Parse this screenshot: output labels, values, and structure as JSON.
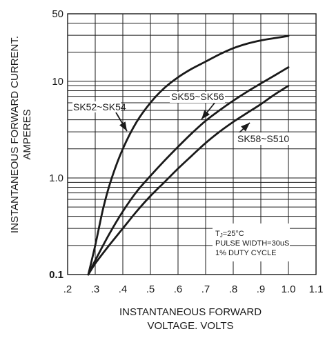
{
  "chart_data": {
    "type": "line",
    "xlabel_line1": "INSTANTANEOUS FORWARD",
    "xlabel_line2": "VOLTAGE. VOLTS",
    "ylabel_line1": "INSTANTANEOUS FORWARD CURRENT.",
    "ylabel_line2": "AMPERES",
    "x_scale": "linear",
    "y_scale": "log",
    "xlim": [
      0.2,
      1.1
    ],
    "ylim": [
      0.1,
      50
    ],
    "x_ticks": [
      {
        "value": 0.2,
        "label": ".2"
      },
      {
        "value": 0.3,
        "label": ".3"
      },
      {
        "value": 0.4,
        "label": ".4"
      },
      {
        "value": 0.5,
        "label": ".5"
      },
      {
        "value": 0.6,
        "label": ".6"
      },
      {
        "value": 0.7,
        "label": ".7"
      },
      {
        "value": 0.8,
        "label": ".8"
      },
      {
        "value": 0.9,
        "label": ".9"
      },
      {
        "value": 1.0,
        "label": "1.0"
      },
      {
        "value": 1.1,
        "label": "1.1"
      }
    ],
    "y_ticks": [
      {
        "value": 0.1,
        "label": "0.1",
        "bold": true
      },
      {
        "value": 1.0,
        "label": "1.0",
        "bold": false
      },
      {
        "value": 10,
        "label": "10",
        "bold": false
      },
      {
        "value": 50,
        "label": "50",
        "bold": false
      }
    ],
    "grid": true,
    "series": [
      {
        "name": "SK52~SK54",
        "x": [
          0.275,
          0.3,
          0.33,
          0.36,
          0.4,
          0.45,
          0.5,
          0.55,
          0.6,
          0.65,
          0.7,
          0.75,
          0.8,
          0.85,
          0.9,
          0.95,
          1.0
        ],
        "y": [
          0.1,
          0.2,
          0.5,
          1.0,
          2.0,
          3.8,
          6.0,
          8.5,
          11,
          13.5,
          16,
          19,
          22,
          24.5,
          26.5,
          28,
          29.5
        ]
      },
      {
        "name": "SK55~SK56",
        "x": [
          0.275,
          0.3,
          0.35,
          0.4,
          0.45,
          0.5,
          0.55,
          0.6,
          0.65,
          0.7,
          0.75,
          0.8,
          0.85,
          0.9,
          0.95,
          1.0
        ],
        "y": [
          0.1,
          0.14,
          0.26,
          0.45,
          0.72,
          1.05,
          1.5,
          2.1,
          2.9,
          3.9,
          5.0,
          6.3,
          7.8,
          9.5,
          11.5,
          14
        ]
      },
      {
        "name": "SK58~S510",
        "x": [
          0.275,
          0.3,
          0.35,
          0.4,
          0.45,
          0.5,
          0.55,
          0.6,
          0.65,
          0.7,
          0.75,
          0.8,
          0.85,
          0.9,
          0.95,
          1.0
        ],
        "y": [
          0.1,
          0.13,
          0.2,
          0.3,
          0.45,
          0.65,
          0.9,
          1.25,
          1.7,
          2.3,
          3.0,
          3.8,
          4.7,
          5.8,
          7.3,
          9.0
        ]
      }
    ],
    "curve_labels": [
      {
        "text": "SK52~SK54",
        "series": 0
      },
      {
        "text": "SK55~SK56",
        "series": 1
      },
      {
        "text": "SK58~S510",
        "series": 2
      }
    ],
    "conditions": {
      "line1_prefix": "T",
      "line1_sub": "J",
      "line1_suffix": "=25°C",
      "line2": "PULSE WIDTH=30uS",
      "line3": "1% DUTY CYCLE"
    }
  }
}
